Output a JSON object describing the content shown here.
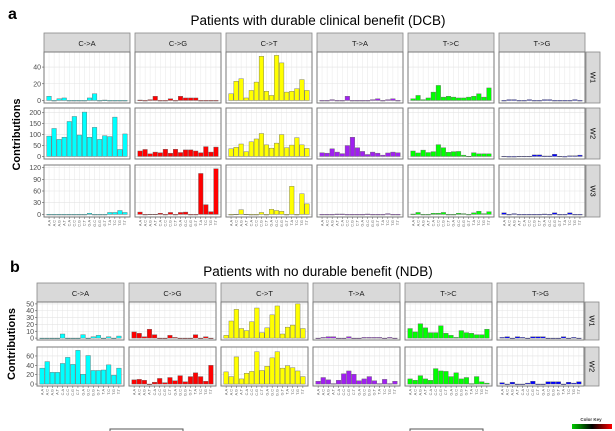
{
  "colors": {
    "C->A": "#00FFFF",
    "C->G": "#FF0000",
    "C->T": "#FFFF00",
    "T->A": "#A020F0",
    "T->C": "#00FF00",
    "T->G": "#0000FF"
  },
  "color_key": {
    "label": "Color Key",
    "gradient": [
      "#00CC00",
      "#000000",
      "#FF0000"
    ]
  },
  "chart_data": [
    {
      "type": "bar",
      "panel_label": "a",
      "title": "Patients with durable clinical benefit (DCB)",
      "ylabel": "Contributions",
      "grid": true,
      "facets_x": [
        "C->A",
        "C->G",
        "C->T",
        "T->A",
        "T->C",
        "T->G"
      ],
      "categories": [
        "A.A",
        "A.C",
        "A.G",
        "A.T",
        "C.A",
        "C.C",
        "C.G",
        "C.T",
        "G.A",
        "G.C",
        "G.G",
        "G.T",
        "T.A",
        "T.C",
        "T.G",
        "T.T"
      ],
      "rows": [
        {
          "name": "W1",
          "ylim": [
            0,
            55
          ],
          "yticks": [
            0,
            20,
            40
          ],
          "values": {
            "C->A": [
              5,
              0,
              2,
              3,
              0,
              0,
              0,
              0,
              3,
              8,
              0,
              0.5,
              0,
              0,
              0,
              0
            ],
            "C->G": [
              0.5,
              0,
              1,
              5,
              0,
              0,
              2,
              0,
              5,
              3,
              3,
              3,
              0,
              0,
              0,
              0
            ],
            "C->T": [
              8,
              23,
              26,
              3,
              12,
              22,
              53,
              11,
              6,
              54,
              45,
              10,
              11,
              14,
              25,
              12
            ],
            "T->A": [
              0,
              0,
              1,
              0,
              0,
              5,
              0,
              0,
              0,
              0,
              1,
              2,
              0,
              1,
              2,
              0
            ],
            "T->C": [
              2,
              6,
              1,
              3,
              10,
              18,
              4,
              5,
              4,
              3,
              3,
              4,
              5,
              8,
              4,
              15
            ],
            "T->G": [
              0,
              1,
              1,
              0,
              0,
              1,
              0,
              0,
              1,
              1,
              0,
              0,
              0,
              0,
              1,
              0
            ]
          }
        },
        {
          "name": "W2",
          "ylim": [
            0,
            210
          ],
          "yticks": [
            0,
            50,
            100,
            150,
            200
          ],
          "values": {
            "C->A": [
              93,
              128,
              78,
              88,
              160,
              183,
              98,
              203,
              88,
              133,
              78,
              95,
              91,
              180,
              32,
              103
            ],
            "C->G": [
              25,
              32,
              12,
              20,
              17,
              33,
              15,
              33,
              18,
              30,
              30,
              25,
              17,
              45,
              20,
              43
            ],
            "C->T": [
              35,
              42,
              57,
              22,
              67,
              80,
              105,
              53,
              38,
              61,
              100,
              40,
              52,
              86,
              53,
              37
            ],
            "T->A": [
              17,
              15,
              35,
              20,
              13,
              50,
              88,
              40,
              23,
              9,
              20,
              15,
              6,
              16,
              20,
              17
            ],
            "T->C": [
              25,
              16,
              29,
              18,
              22,
              54,
              40,
              19,
              22,
              23,
              6,
              1,
              17,
              12,
              12,
              12
            ],
            "T->G": [
              1,
              0,
              0,
              1,
              1,
              1,
              7,
              7,
              2,
              2,
              10,
              1,
              0,
              3,
              3,
              6
            ]
          }
        },
        {
          "name": "W3",
          "ylim": [
            0,
            120
          ],
          "yticks": [
            0,
            30,
            60,
            90,
            120
          ],
          "values": {
            "C->A": [
              0,
              0,
              0,
              0,
              0,
              0,
              0,
              0,
              3,
              0,
              0,
              0,
              5,
              5,
              10,
              5
            ],
            "C->G": [
              6,
              0,
              0.5,
              0.5,
              3,
              0,
              5,
              0,
              5,
              6,
              0,
              0,
              105,
              25,
              7,
              117
            ],
            "C->T": [
              0,
              0.5,
              12,
              0.5,
              0,
              0,
              5,
              0,
              13,
              10,
              8,
              0,
              72,
              0,
              53,
              27
            ],
            "T->A": [
              0,
              0,
              0,
              1,
              1,
              0,
              0,
              0,
              0,
              1,
              0,
              0,
              0,
              2,
              0,
              0
            ],
            "T->C": [
              1,
              5,
              0,
              0,
              3,
              3,
              5,
              0,
              0,
              3,
              2,
              0,
              4,
              8,
              2,
              7
            ],
            "T->G": [
              4,
              0,
              2,
              0,
              0,
              0,
              0,
              0,
              1,
              0,
              4,
              0,
              0,
              4,
              0,
              0
            ]
          }
        }
      ]
    },
    {
      "type": "bar",
      "panel_label": "b",
      "title": "Patients with no durable benefit (NDB)",
      "ylabel": "Contributions",
      "grid": true,
      "facets_x": [
        "C->A",
        "C->G",
        "C->T",
        "T->A",
        "T->C",
        "T->G"
      ],
      "categories": [
        "A.A",
        "A.C",
        "A.G",
        "A.T",
        "C.A",
        "C.C",
        "C.G",
        "C.T",
        "G.A",
        "G.C",
        "G.G",
        "G.T",
        "T.A",
        "T.C",
        "T.G",
        "T.T"
      ],
      "rows": [
        {
          "name": "W1",
          "ylim": [
            0,
            50
          ],
          "yticks": [
            0,
            10,
            20,
            30,
            40,
            50
          ],
          "values": {
            "C->A": [
              0,
              0,
              0,
              0,
              6,
              0,
              0,
              0,
              5,
              0,
              2,
              4,
              0,
              2,
              0,
              3
            ],
            "C->G": [
              9,
              7,
              2,
              13,
              5,
              0,
              0,
              4,
              1,
              0,
              0,
              0,
              5,
              0,
              2,
              0
            ],
            "C->T": [
              4,
              25,
              42,
              14,
              11,
              24,
              44,
              8,
              15,
              34,
              47,
              6,
              16,
              19,
              50,
              14
            ],
            "T->A": [
              0,
              1,
              2,
              2,
              0,
              0,
              2,
              0,
              0,
              1,
              1,
              1,
              1,
              0,
              1,
              0
            ],
            "T->C": [
              14,
              9,
              21,
              15,
              8,
              8,
              18,
              7,
              4,
              1,
              11,
              8,
              7,
              5,
              5,
              13
            ],
            "T->G": [
              1,
              2,
              0,
              2,
              1,
              0,
              2,
              2,
              2,
              0,
              0,
              0,
              2,
              0,
              1,
              0
            ]
          }
        },
        {
          "name": "W2",
          "ylim": [
            0,
            75
          ],
          "yticks": [
            0,
            20,
            40,
            60
          ],
          "values": {
            "C->A": [
              34,
              48,
              25,
              25,
              44,
              57,
              42,
              72,
              21,
              61,
              29,
              29,
              30,
              41,
              19,
              34
            ],
            "C->G": [
              9,
              10,
              8,
              0,
              4,
              12,
              3,
              14,
              7,
              18,
              5,
              16,
              24,
              16,
              6,
              40
            ],
            "C->T": [
              26,
              16,
              58,
              11,
              23,
              27,
              69,
              29,
              38,
              56,
              69,
              34,
              39,
              35,
              28,
              16
            ],
            "T->A": [
              6,
              14,
              9,
              1,
              8,
              22,
              28,
              21,
              7,
              11,
              16,
              7,
              1,
              10,
              1,
              6
            ],
            "T->C": [
              11,
              8,
              18,
              11,
              8,
              33,
              28,
              27,
              16,
              24,
              11,
              14,
              1,
              16,
              5,
              2
            ],
            "T->G": [
              3,
              0,
              4,
              0,
              0,
              2,
              6,
              0,
              0,
              5,
              5,
              5,
              0,
              4,
              2,
              5
            ]
          }
        }
      ]
    }
  ]
}
